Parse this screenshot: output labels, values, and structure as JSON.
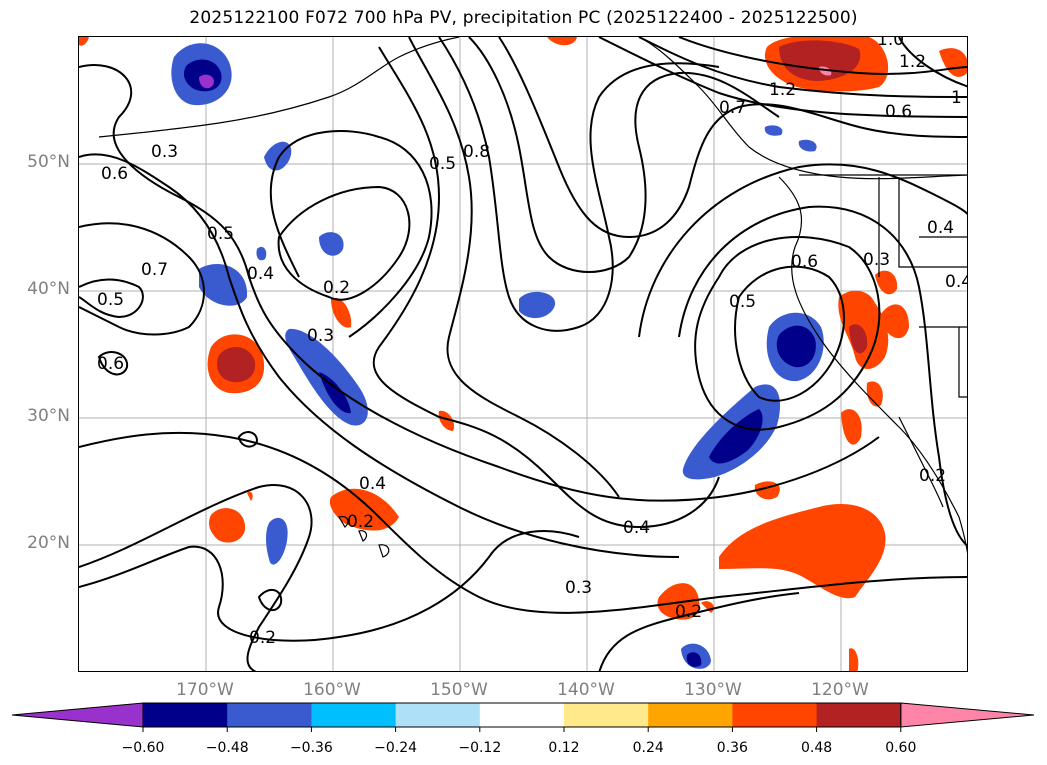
{
  "title": "2025122100 F072 700 hPa PV, precipitation PC (2025122400 - 2025122500)",
  "map": {
    "lat_labels": [
      "50°N",
      "40°N",
      "30°N",
      "20°N"
    ],
    "lon_labels": [
      "170°W",
      "160°W",
      "150°W",
      "140°W",
      "130°W",
      "120°W"
    ],
    "extent": {
      "lon": [
        -180,
        -110
      ],
      "lat": [
        10,
        60
      ]
    },
    "gridlines": true,
    "contour_color": "#000000",
    "contour_labels": [
      "0.3",
      "0.6",
      "0.5",
      "0.7",
      "0.4",
      "0.5",
      "0.6",
      "0.8",
      "0.5",
      "0.2",
      "0.3",
      "0.4",
      "0.2",
      "0.4",
      "0.3",
      "0.2",
      "0.2",
      "0.6",
      "0.5",
      "0.3",
      "0.4",
      "0.4",
      "0.2",
      "0.7",
      "1.2",
      "1.0",
      "1.2",
      "0.6",
      "1"
    ]
  },
  "colorbar": {
    "levels": [
      "−0.60",
      "−0.48",
      "−0.36",
      "−0.24",
      "−0.12",
      "0.12",
      "0.24",
      "0.36",
      "0.48",
      "0.60"
    ],
    "colors": [
      "#9932cc",
      "#00008b",
      "#3a5bcf",
      "#00bfff",
      "#aee0f8",
      "#ffffff",
      "#ffe98a",
      "#ffa500",
      "#ff4500",
      "#b22222",
      "#ff85a8"
    ]
  }
}
